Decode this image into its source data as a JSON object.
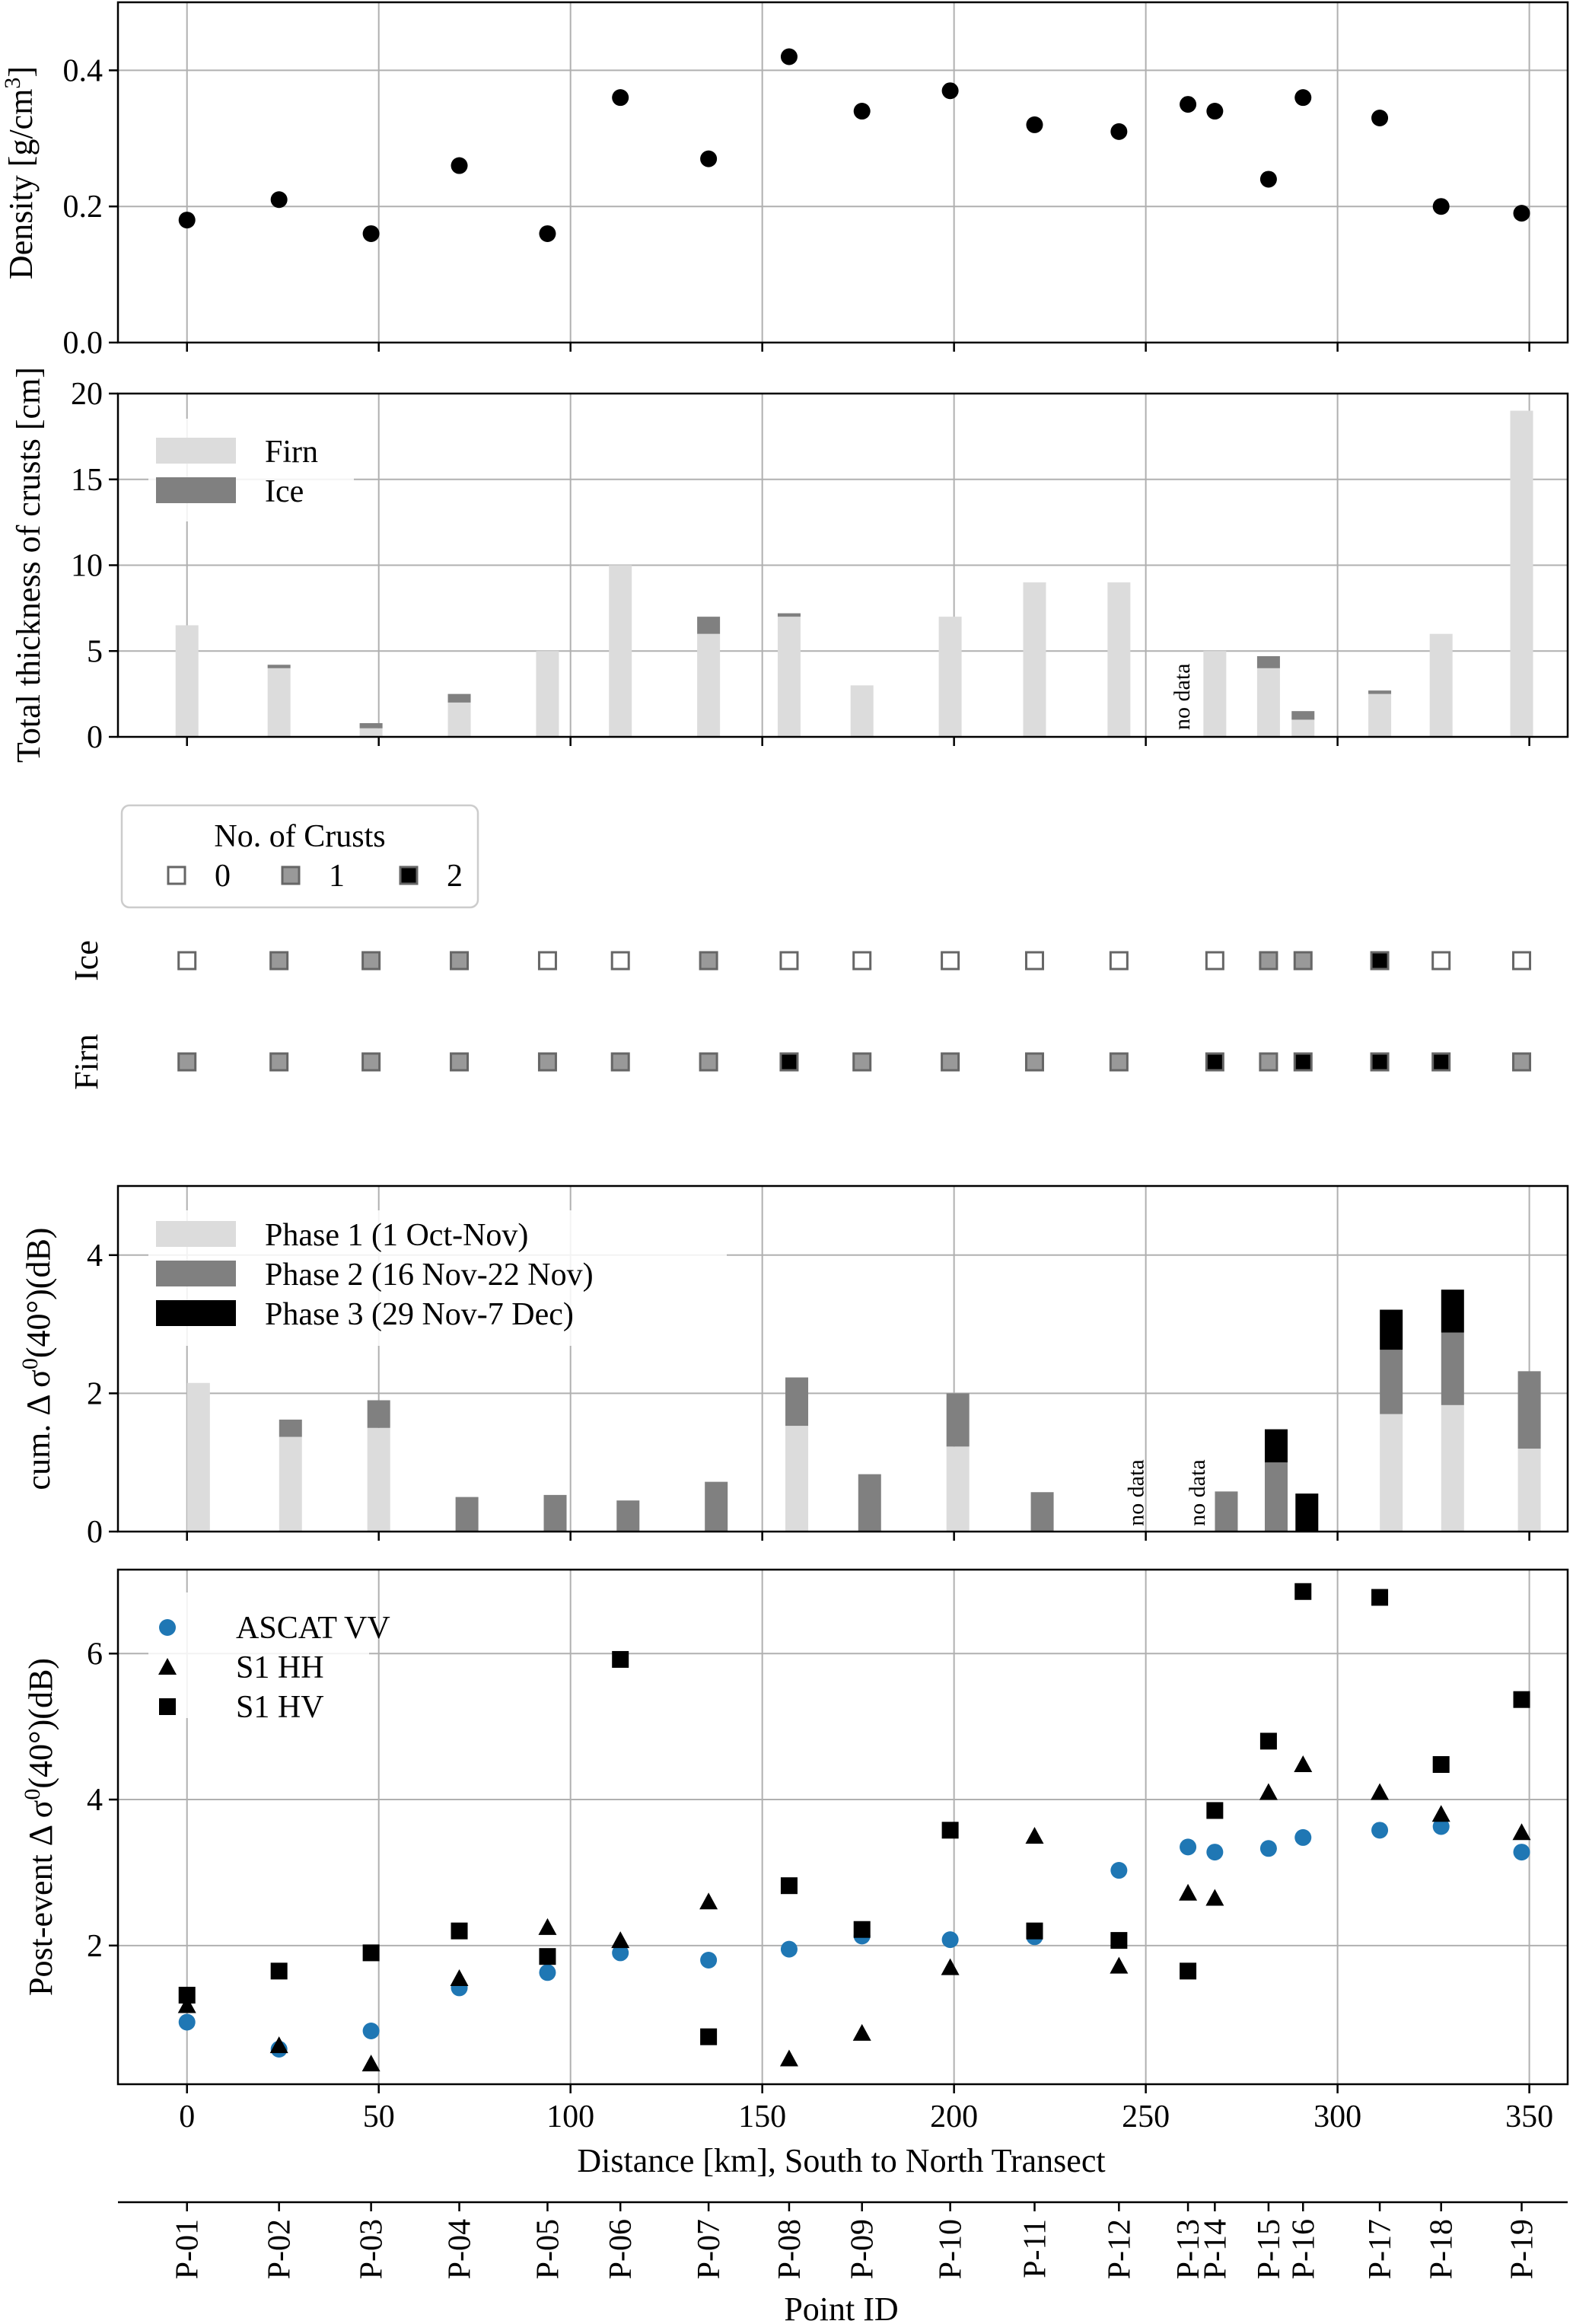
{
  "colors": {
    "firn": "#dcdcdc",
    "ice": "#808080",
    "phase1": "#dcdcdc",
    "phase2": "#808080",
    "phase3": "#000000",
    "ascat": "#1f77b4",
    "s1": "#000000",
    "grid": "#b0b0b0"
  },
  "chart_data": [
    {
      "type": "scatter",
      "panel": "density",
      "ylabel": "Density [g/cm3]",
      "ylim": [
        0,
        0.5
      ],
      "yticks": [
        "0.0",
        "0.2",
        "0.4"
      ],
      "x": [
        0,
        24,
        48,
        71,
        94,
        113,
        136,
        157,
        176,
        199,
        221,
        243,
        261,
        268,
        282,
        291,
        311,
        327,
        348
      ],
      "values": [
        0.18,
        0.21,
        0.16,
        0.26,
        0.16,
        0.36,
        0.27,
        0.42,
        0.34,
        0.37,
        0.32,
        0.31,
        0.35,
        0.34,
        0.24,
        0.36,
        0.33,
        0.2,
        0.19
      ]
    },
    {
      "type": "bar",
      "panel": "crust thickness",
      "ylabel": "Total thickness of crusts [cm]",
      "ylim": [
        0,
        20
      ],
      "yticks": [
        "0",
        "5",
        "10",
        "15",
        "20"
      ],
      "legend": [
        "Firn",
        "Ice"
      ],
      "annotations": [
        "no data"
      ],
      "x": [
        0,
        24,
        48,
        71,
        94,
        113,
        136,
        157,
        176,
        199,
        221,
        243,
        268,
        282,
        291,
        311,
        327,
        348
      ],
      "series": [
        {
          "name": "Firn",
          "values": [
            6.5,
            4,
            0.5,
            2,
            5,
            10,
            6,
            7,
            3,
            7,
            9,
            9,
            5,
            4,
            1,
            2.5,
            6,
            19
          ]
        },
        {
          "name": "Ice",
          "values": [
            0,
            0.2,
            0.3,
            0.5,
            0,
            0,
            1,
            0.2,
            0,
            0,
            0,
            0,
            0,
            0.7,
            0.5,
            0.2,
            0,
            0
          ]
        }
      ]
    },
    {
      "type": "scatter",
      "panel": "number of crusts",
      "legend_title": "No. of Crusts",
      "legend": [
        "0",
        "1",
        "2"
      ],
      "rows": [
        "Ice",
        "Firn"
      ],
      "x": [
        0,
        24,
        48,
        71,
        94,
        113,
        136,
        157,
        176,
        199,
        221,
        243,
        268,
        282,
        291,
        311,
        327,
        348
      ],
      "ice_counts": [
        0,
        1,
        1,
        1,
        0,
        0,
        1,
        0,
        0,
        0,
        0,
        0,
        0,
        1,
        1,
        2,
        0,
        0
      ],
      "firn_counts": [
        1,
        1,
        1,
        1,
        1,
        1,
        1,
        2,
        1,
        1,
        1,
        1,
        2,
        1,
        2,
        2,
        2,
        1
      ]
    },
    {
      "type": "bar",
      "panel": "cumulative backscatter change",
      "ylabel": "cum. Δ σ0(40°)(dB)",
      "ylim": [
        0,
        5
      ],
      "yticks": [
        "0",
        "2",
        "4"
      ],
      "legend": [
        "Phase 1 (1 Oct-Nov)",
        "Phase 2 (16 Nov-22 Nov)",
        "Phase 3 (29 Nov-7 Dec)"
      ],
      "annotations": [
        "no data",
        "no data"
      ],
      "x": [
        3,
        27,
        50,
        73,
        96,
        115,
        138,
        159,
        178,
        201,
        223,
        271,
        284,
        292,
        314,
        330,
        350
      ],
      "series": [
        {
          "name": "Phase 1",
          "values": [
            2.15,
            1.37,
            1.5,
            0,
            0,
            0,
            0,
            1.53,
            0,
            1.23,
            0,
            0,
            0,
            0,
            1.7,
            1.83,
            1.2
          ]
        },
        {
          "name": "Phase 2",
          "values": [
            0,
            0.25,
            0.4,
            0.5,
            0.53,
            0.45,
            0.72,
            0.7,
            0.83,
            0.77,
            0.57,
            0.58,
            1.0,
            0,
            0.93,
            1.05,
            1.12
          ]
        },
        {
          "name": "Phase 3",
          "values": [
            0,
            0,
            0,
            0,
            0,
            0,
            0,
            0,
            0,
            0,
            0,
            0,
            0.48,
            0.55,
            0.58,
            0.62,
            0
          ]
        }
      ]
    },
    {
      "type": "scatter",
      "panel": "post-event backscatter change",
      "ylabel": "Post-event Δ σ0(40°)(dB)",
      "xlabel": "Distance [km], South to North Transect",
      "xlim": [
        -18,
        360
      ],
      "xticks": [
        "0",
        "50",
        "100",
        "150",
        "200",
        "250",
        "300",
        "350"
      ],
      "ylim": [
        0.1,
        7.15
      ],
      "yticks": [
        "2",
        "4",
        "6"
      ],
      "legend": [
        "ASCAT VV",
        "S1 HH",
        "S1 HV"
      ],
      "x": [
        0,
        24,
        48,
        71,
        94,
        113,
        136,
        157,
        176,
        199,
        221,
        243,
        261,
        268,
        282,
        291,
        311,
        327,
        348
      ],
      "series": [
        {
          "name": "ASCAT VV",
          "values": [
            0.95,
            0.58,
            0.83,
            1.42,
            1.63,
            1.9,
            1.8,
            1.95,
            2.13,
            2.08,
            2.12,
            3.03,
            3.35,
            3.28,
            3.33,
            3.48,
            3.58,
            3.63,
            3.28
          ]
        },
        {
          "name": "S1 HH",
          "values": [
            1.18,
            0.63,
            0.38,
            1.55,
            2.25,
            2.07,
            2.6,
            0.45,
            0.8,
            1.7,
            3.5,
            1.72,
            2.72,
            2.65,
            4.1,
            4.48,
            4.1,
            3.8,
            3.55
          ]
        },
        {
          "name": "S1 HV",
          "values": [
            1.32,
            1.65,
            1.9,
            2.2,
            1.85,
            5.92,
            0.75,
            2.82,
            2.22,
            3.58,
            2.2,
            2.07,
            1.65,
            3.85,
            4.8,
            6.85,
            6.77,
            4.48,
            5.37
          ]
        }
      ]
    },
    {
      "type": "table",
      "panel": "point id axis",
      "xlabel": "Point ID",
      "x": [
        0,
        24,
        48,
        71,
        94,
        113,
        136,
        157,
        176,
        199,
        221,
        243,
        261,
        268,
        282,
        291,
        311,
        327,
        348
      ],
      "categories": [
        "P-01",
        "P-02",
        "P-03",
        "P-04",
        "P-05",
        "P-06",
        "P-07",
        "P-08",
        "P-09",
        "P-10",
        "P-11",
        "P-12",
        "P-13",
        "P-14",
        "P-15",
        "P-16",
        "P-17",
        "P-18",
        "P-19"
      ]
    }
  ]
}
